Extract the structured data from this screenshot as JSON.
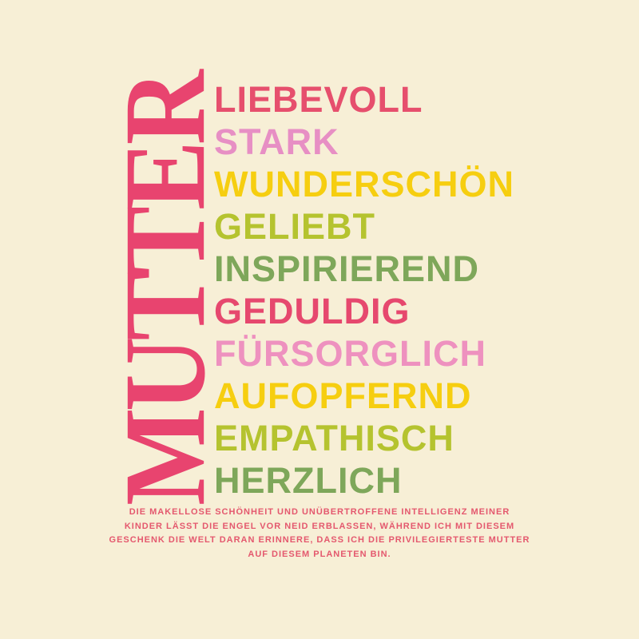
{
  "page": {
    "background_color": "#f7efd6"
  },
  "vertical_title": {
    "text": "MUTTER",
    "color": "#e8446f"
  },
  "words": [
    {
      "label": "LIEBEVOLL",
      "color": "#e64f6d"
    },
    {
      "label": "STARK",
      "color": "#e78fc4"
    },
    {
      "label": "WUNDERSCHÖN",
      "color": "#f6ce10"
    },
    {
      "label": "GELIEBT",
      "color": "#b5c32f"
    },
    {
      "label": "INSPIRIEREND",
      "color": "#7ea75a"
    },
    {
      "label": "GEDULDIG",
      "color": "#e6486e"
    },
    {
      "label": "FÜRSORGLICH",
      "color": "#ee91bf"
    },
    {
      "label": "AUFOPFERND",
      "color": "#f6ce10"
    },
    {
      "label": "EMPATHISCH",
      "color": "#b5c32f"
    },
    {
      "label": "HERZLICH",
      "color": "#7ea75a"
    }
  ],
  "caption": {
    "color": "#e4586e",
    "lines": [
      "DIE MAKELLOSE SCHÖNHEIT UND UNÜBERTROFFENE INTELLIGENZ MEINER",
      "KINDER LÄSST DIE ENGEL VOR NEID ERBLASSEN, WÄHREND ICH MIT DIESEM",
      "GESCHENK DIE WELT DARAN ERINNERE, DASS ICH DIE PRIVILEGIERTESTE MUTTER",
      "AUF DIESEM PLANETEN BIN."
    ],
    "full_text": "DIE MAKELLOSE SCHÖNHEIT UND UNÜBERTROFFENE INTELLIGENZ MEINER KINDER LÄSST DIE ENGEL VOR NEID ERBLASSEN, WÄHREND ICH MIT DIESEM GESCHENK DIE WELT DARAN ERINNERE, DASS ICH DIE PRIVILEGIERTESTE MUTTER AUF DIESEM PLANETEN BIN."
  }
}
